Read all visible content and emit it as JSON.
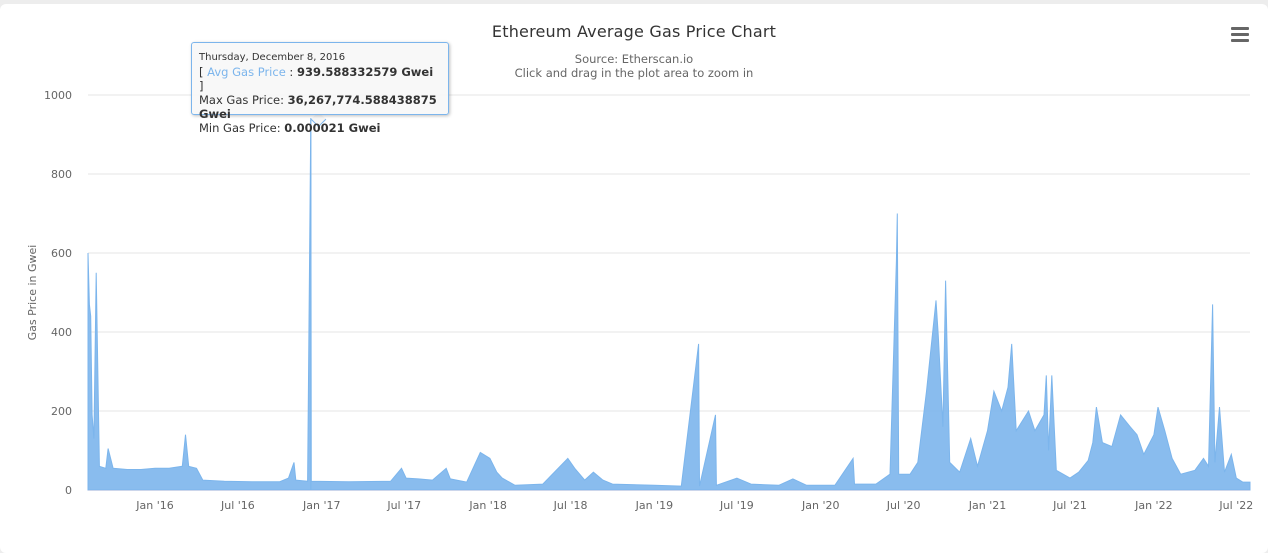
{
  "chart_data": {
    "type": "area",
    "title": "Ethereum Average Gas Price Chart",
    "subtitle_source": "Source: Etherscan.io",
    "subtitle_hint": "Click and drag in the plot area to zoom in",
    "ylabel": "Gas Price in Gwei",
    "xlabel": "",
    "ylim": [
      0,
      1000
    ],
    "yticks": [
      0,
      200,
      400,
      600,
      800,
      1000
    ],
    "x_range": [
      "2015-08-07",
      "2022-07-31"
    ],
    "xticks": [
      {
        "date": "2016-01-01",
        "label": "Jan '16"
      },
      {
        "date": "2016-07-01",
        "label": "Jul '16"
      },
      {
        "date": "2017-01-01",
        "label": "Jan '17"
      },
      {
        "date": "2017-07-01",
        "label": "Jul '17"
      },
      {
        "date": "2018-01-01",
        "label": "Jan '18"
      },
      {
        "date": "2018-07-01",
        "label": "Jul '18"
      },
      {
        "date": "2019-01-01",
        "label": "Jan '19"
      },
      {
        "date": "2019-07-01",
        "label": "Jul '19"
      },
      {
        "date": "2020-01-01",
        "label": "Jan '20"
      },
      {
        "date": "2020-07-01",
        "label": "Jul '20"
      },
      {
        "date": "2021-01-01",
        "label": "Jan '21"
      },
      {
        "date": "2021-07-01",
        "label": "Jul '21"
      },
      {
        "date": "2022-01-01",
        "label": "Jan '22"
      },
      {
        "date": "2022-07-01",
        "label": "Jul '22"
      }
    ],
    "grid": true,
    "legend": false,
    "color": "#7cb5ec",
    "series": [
      {
        "points": [
          [
            "2015-08-07",
            600
          ],
          [
            "2015-08-10",
            470
          ],
          [
            "2015-08-13",
            440
          ],
          [
            "2015-08-16",
            190
          ],
          [
            "2015-08-20",
            130
          ],
          [
            "2015-08-25",
            550
          ],
          [
            "2015-09-01",
            60
          ],
          [
            "2015-09-15",
            55
          ],
          [
            "2015-09-20",
            105
          ],
          [
            "2015-10-01",
            55
          ],
          [
            "2015-11-01",
            52
          ],
          [
            "2015-12-01",
            52
          ],
          [
            "2016-01-01",
            55
          ],
          [
            "2016-02-01",
            55
          ],
          [
            "2016-03-01",
            60
          ],
          [
            "2016-03-08",
            140
          ],
          [
            "2016-03-15",
            60
          ],
          [
            "2016-04-01",
            55
          ],
          [
            "2016-04-15",
            25
          ],
          [
            "2016-06-01",
            22
          ],
          [
            "2016-08-01",
            21
          ],
          [
            "2016-10-01",
            21
          ],
          [
            "2016-10-20",
            30
          ],
          [
            "2016-11-01",
            70
          ],
          [
            "2016-11-05",
            25
          ],
          [
            "2016-12-01",
            22
          ],
          [
            "2016-12-08",
            939.588332579
          ],
          [
            "2016-12-09",
            22
          ],
          [
            "2017-03-01",
            21
          ],
          [
            "2017-06-01",
            22
          ],
          [
            "2017-06-25",
            55
          ],
          [
            "2017-07-05",
            30
          ],
          [
            "2017-08-01",
            28
          ],
          [
            "2017-09-01",
            25
          ],
          [
            "2017-10-01",
            55
          ],
          [
            "2017-10-10",
            28
          ],
          [
            "2017-11-15",
            20
          ],
          [
            "2017-12-15",
            95
          ],
          [
            "2018-01-05",
            80
          ],
          [
            "2018-01-20",
            45
          ],
          [
            "2018-02-01",
            30
          ],
          [
            "2018-03-01",
            12
          ],
          [
            "2018-05-01",
            15
          ],
          [
            "2018-06-25",
            80
          ],
          [
            "2018-07-10",
            55
          ],
          [
            "2018-08-01",
            25
          ],
          [
            "2018-08-20",
            45
          ],
          [
            "2018-09-10",
            25
          ],
          [
            "2018-10-01",
            15
          ],
          [
            "2019-01-01",
            12
          ],
          [
            "2019-03-01",
            10
          ],
          [
            "2019-04-08",
            370
          ],
          [
            "2019-04-10",
            10
          ],
          [
            "2019-05-15",
            190
          ],
          [
            "2019-05-17",
            12
          ],
          [
            "2019-07-01",
            30
          ],
          [
            "2019-08-01",
            15
          ],
          [
            "2019-10-01",
            12
          ],
          [
            "2019-11-01",
            28
          ],
          [
            "2019-12-01",
            12
          ],
          [
            "2020-02-01",
            12
          ],
          [
            "2020-03-12",
            80
          ],
          [
            "2020-03-15",
            15
          ],
          [
            "2020-05-01",
            15
          ],
          [
            "2020-06-01",
            40
          ],
          [
            "2020-06-15",
            580
          ],
          [
            "2020-06-17",
            700
          ],
          [
            "2020-06-20",
            40
          ],
          [
            "2020-07-15",
            40
          ],
          [
            "2020-08-01",
            70
          ],
          [
            "2020-08-20",
            250
          ],
          [
            "2020-09-10",
            480
          ],
          [
            "2020-09-15",
            390
          ],
          [
            "2020-09-25",
            160
          ],
          [
            "2020-10-01",
            530
          ],
          [
            "2020-10-10",
            70
          ],
          [
            "2020-11-01",
            45
          ],
          [
            "2020-11-25",
            130
          ],
          [
            "2020-12-10",
            60
          ],
          [
            "2021-01-01",
            150
          ],
          [
            "2021-01-15",
            250
          ],
          [
            "2021-02-01",
            200
          ],
          [
            "2021-02-15",
            260
          ],
          [
            "2021-02-23",
            370
          ],
          [
            "2021-03-05",
            150
          ],
          [
            "2021-04-01",
            200
          ],
          [
            "2021-04-15",
            150
          ],
          [
            "2021-05-05",
            190
          ],
          [
            "2021-05-10",
            290
          ],
          [
            "2021-05-15",
            100
          ],
          [
            "2021-05-22",
            290
          ],
          [
            "2021-06-01",
            50
          ],
          [
            "2021-07-01",
            30
          ],
          [
            "2021-07-20",
            45
          ],
          [
            "2021-08-10",
            75
          ],
          [
            "2021-08-20",
            120
          ],
          [
            "2021-08-28",
            210
          ],
          [
            "2021-09-10",
            120
          ],
          [
            "2021-10-01",
            110
          ],
          [
            "2021-10-20",
            190
          ],
          [
            "2021-11-10",
            160
          ],
          [
            "2021-11-25",
            140
          ],
          [
            "2021-12-10",
            90
          ],
          [
            "2022-01-01",
            140
          ],
          [
            "2022-01-10",
            210
          ],
          [
            "2022-01-25",
            150
          ],
          [
            "2022-02-10",
            80
          ],
          [
            "2022-03-01",
            40
          ],
          [
            "2022-04-01",
            50
          ],
          [
            "2022-04-20",
            80
          ],
          [
            "2022-05-01",
            60
          ],
          [
            "2022-05-10",
            470
          ],
          [
            "2022-05-15",
            70
          ],
          [
            "2022-05-25",
            210
          ],
          [
            "2022-06-05",
            45
          ],
          [
            "2022-06-20",
            90
          ],
          [
            "2022-07-01",
            30
          ],
          [
            "2022-07-15",
            20
          ],
          [
            "2022-07-31",
            20
          ]
        ]
      }
    ]
  },
  "tooltip": {
    "date": "Thursday, December 8, 2016",
    "open_bracket": "[ ",
    "avg_label": "Avg Gas Price",
    "separator": " : ",
    "avg_value": "939.588332579 Gwei",
    "close_bracket": " ]",
    "max_label": "Max Gas Price: ",
    "max_value": "36,267,774.588438875 Gwei",
    "min_label": "Min Gas Price: ",
    "min_value": "0.000021 Gwei",
    "hover_date": "2016-12-08"
  },
  "menu_icon": "hamburger-menu-icon"
}
